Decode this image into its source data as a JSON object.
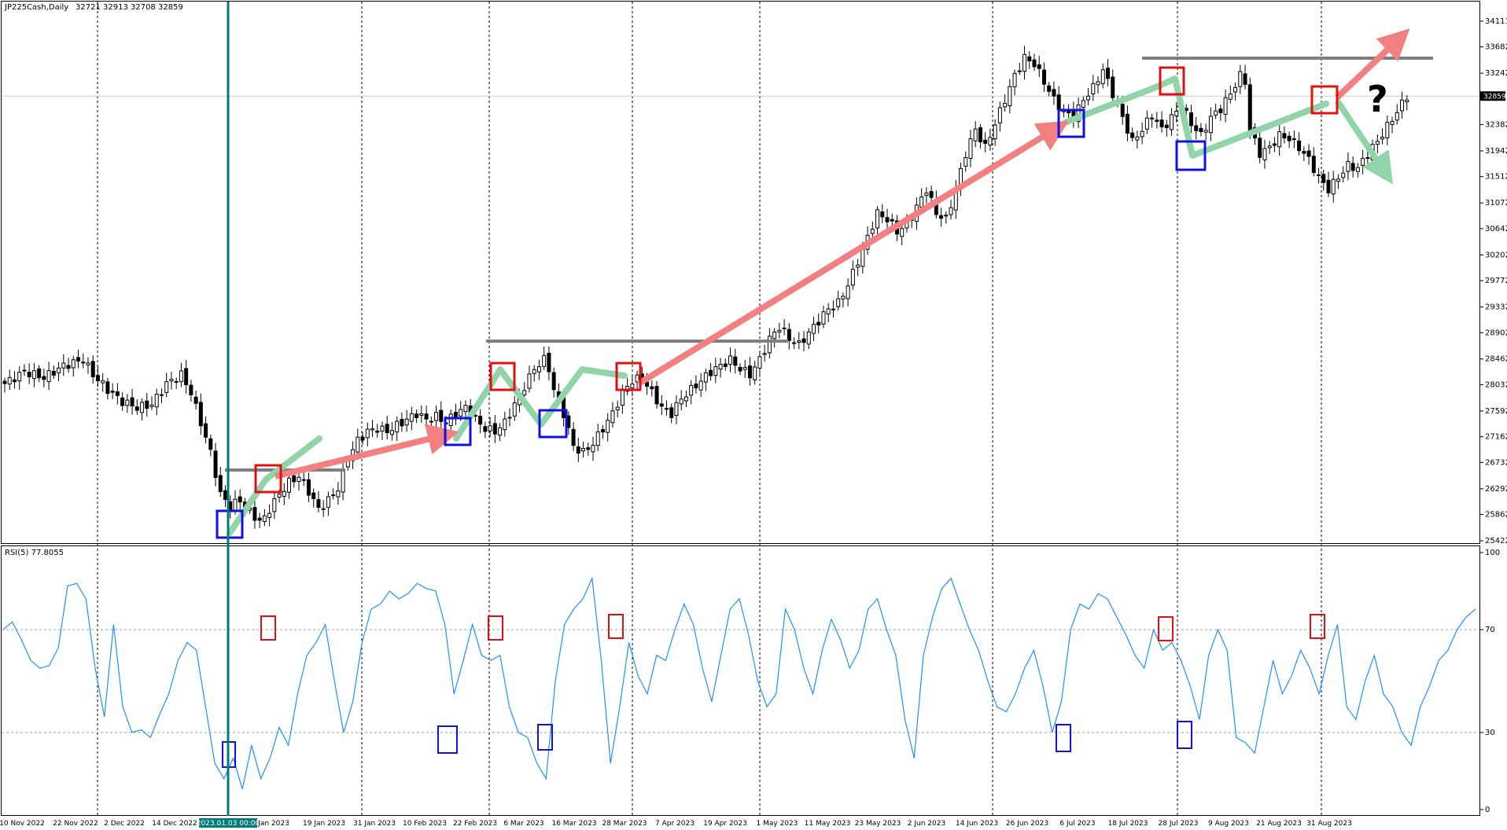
{
  "header": {
    "symbol": "JP225Cash,Daily",
    "ohlc": "32721 32913 32708 32859"
  },
  "rsi_header": {
    "label": "RSI(5) 77.8055"
  },
  "question_mark": "?",
  "vline_date_label": "2023.01.03 00:00",
  "current_price_label": "32859",
  "colors": {
    "bull_body": "#ffffff",
    "bear_body": "#000000",
    "rsi_line": "#1e90ff",
    "vertical_highlight": "#007b7b",
    "up_arrow": "#f28080",
    "green_path": "#90d4a8",
    "level_line": "#7f7f7f",
    "top_box": "#e01010",
    "bottom_box": "#1010e0"
  },
  "chart_data": [
    {
      "type": "candlestick",
      "title": "JP225Cash,Daily",
      "price_ticks": [
        25422,
        25862,
        26292,
        26732,
        27162,
        27592,
        28032,
        28462,
        28902,
        29332,
        29772,
        30202,
        30642,
        31072,
        31512,
        31942,
        32382,
        32859,
        33242,
        33682,
        34111
      ],
      "ylim": [
        25422,
        34111
      ],
      "date_ticks": [
        "10 Nov 2022",
        "22 Nov 2022",
        "2 Dec 2022",
        "14 Dec 2022",
        "2023.01.03 00:00",
        "Jan 2023",
        "19 Jan 2023",
        "31 Jan 2023",
        "10 Feb 2023",
        "22 Feb 2023",
        "6 Mar 2023",
        "16 Mar 2023",
        "28 Mar 2023",
        "7 Apr 2023",
        "19 Apr 2023",
        "1 May 2023",
        "11 May 2023",
        "23 May 2023",
        "2 Jun 2023",
        "14 Jun 2023",
        "26 Jun 2023",
        "6 Jul 2023",
        "18 Jul 2023",
        "28 Jul 2023",
        "9 Aug 2023",
        "21 Aug 2023",
        "31 Aug 2023"
      ],
      "close_path": [
        [
          0,
          28050
        ],
        [
          4,
          28250
        ],
        [
          8,
          28150
        ],
        [
          12,
          28350
        ],
        [
          16,
          28450
        ],
        [
          18,
          28200
        ],
        [
          21,
          27950
        ],
        [
          24,
          27750
        ],
        [
          27,
          27650
        ],
        [
          30,
          27700
        ],
        [
          33,
          28050
        ],
        [
          36,
          28200
        ],
        [
          38,
          27900
        ],
        [
          40,
          27400
        ],
        [
          42,
          26900
        ],
        [
          44,
          26200
        ],
        [
          46,
          26000
        ],
        [
          48,
          26100
        ],
        [
          50,
          25900
        ],
        [
          52,
          25750
        ],
        [
          53,
          25800
        ],
        [
          54,
          25950
        ],
        [
          56,
          26200
        ],
        [
          58,
          26400
        ],
        [
          60,
          26500
        ],
        [
          62,
          26250
        ],
        [
          64,
          25950
        ],
        [
          66,
          26100
        ],
        [
          68,
          26300
        ],
        [
          70,
          26800
        ],
        [
          72,
          27100
        ],
        [
          74,
          27250
        ],
        [
          76,
          27300
        ],
        [
          78,
          27250
        ],
        [
          80,
          27350
        ],
        [
          82,
          27450
        ],
        [
          84,
          27550
        ],
        [
          86,
          27450
        ],
        [
          88,
          27500
        ],
        [
          90,
          27400
        ],
        [
          92,
          27550
        ],
        [
          94,
          27650
        ],
        [
          96,
          27450
        ],
        [
          98,
          27300
        ],
        [
          100,
          27250
        ],
        [
          102,
          27400
        ],
        [
          104,
          27700
        ],
        [
          106,
          28000
        ],
        [
          108,
          28300
        ],
        [
          110,
          28450
        ],
        [
          111,
          28300
        ],
        [
          112,
          27950
        ],
        [
          114,
          27550
        ],
        [
          116,
          27000
        ],
        [
          118,
          26900
        ],
        [
          120,
          27050
        ],
        [
          122,
          27300
        ],
        [
          124,
          27550
        ],
        [
          126,
          27900
        ],
        [
          128,
          28100
        ],
        [
          130,
          28150
        ],
        [
          132,
          27900
        ],
        [
          134,
          27650
        ],
        [
          136,
          27550
        ],
        [
          138,
          27800
        ],
        [
          140,
          27950
        ],
        [
          142,
          28100
        ],
        [
          144,
          28250
        ],
        [
          146,
          28350
        ],
        [
          148,
          28450
        ],
        [
          150,
          28300
        ],
        [
          152,
          28200
        ],
        [
          154,
          28450
        ],
        [
          156,
          28800
        ],
        [
          158,
          29000
        ],
        [
          160,
          28800
        ],
        [
          162,
          28700
        ],
        [
          164,
          28900
        ],
        [
          166,
          29100
        ],
        [
          168,
          29300
        ],
        [
          170,
          29400
        ],
        [
          172,
          29700
        ],
        [
          174,
          30100
        ],
        [
          176,
          30500
        ],
        [
          178,
          30900
        ],
        [
          180,
          30800
        ],
        [
          182,
          30600
        ],
        [
          184,
          30700
        ],
        [
          186,
          31000
        ],
        [
          188,
          31300
        ],
        [
          190,
          30900
        ],
        [
          192,
          30800
        ],
        [
          194,
          31300
        ],
        [
          196,
          31900
        ],
        [
          198,
          32300
        ],
        [
          200,
          32000
        ],
        [
          202,
          32400
        ],
        [
          204,
          32800
        ],
        [
          206,
          33200
        ],
        [
          208,
          33500
        ],
        [
          210,
          33400
        ],
        [
          212,
          33100
        ],
        [
          214,
          32800
        ],
        [
          216,
          32600
        ],
        [
          218,
          32500
        ],
        [
          220,
          32800
        ],
        [
          222,
          33000
        ],
        [
          224,
          33300
        ],
        [
          226,
          32900
        ],
        [
          228,
          32500
        ],
        [
          230,
          32100
        ],
        [
          232,
          32300
        ],
        [
          234,
          32550
        ],
        [
          236,
          32300
        ],
        [
          238,
          32500
        ],
        [
          240,
          32700
        ],
        [
          242,
          32400
        ],
        [
          244,
          32200
        ],
        [
          246,
          32500
        ],
        [
          248,
          32650
        ],
        [
          250,
          32900
        ],
        [
          252,
          33200
        ],
        [
          253,
          33100
        ],
        [
          254,
          32300
        ],
        [
          256,
          31900
        ],
        [
          258,
          32000
        ],
        [
          260,
          32200
        ],
        [
          262,
          32150
        ],
        [
          264,
          32000
        ],
        [
          266,
          31800
        ],
        [
          268,
          31500
        ],
        [
          270,
          31300
        ],
        [
          272,
          31500
        ],
        [
          274,
          31700
        ],
        [
          276,
          31650
        ],
        [
          278,
          31900
        ],
        [
          280,
          32100
        ],
        [
          282,
          32350
        ],
        [
          284,
          32600
        ],
        [
          286,
          32859
        ]
      ]
    },
    {
      "type": "line",
      "title": "RSI(5) 77.8055",
      "ylim": [
        0,
        100
      ],
      "y_ticks": [
        0,
        30,
        70,
        100
      ],
      "series": [
        {
          "name": "RSI(5)",
          "values": [
            70,
            73,
            66,
            58,
            55,
            56,
            63,
            87,
            88,
            82,
            55,
            36,
            72,
            40,
            30,
            31,
            28,
            37,
            45,
            58,
            65,
            62,
            40,
            18,
            12,
            20,
            8,
            25,
            12,
            20,
            32,
            25,
            45,
            60,
            65,
            72,
            50,
            30,
            42,
            65,
            78,
            80,
            85,
            82,
            84,
            88,
            86,
            85,
            72,
            45,
            58,
            72,
            60,
            58,
            60,
            40,
            30,
            28,
            18,
            12,
            50,
            72,
            78,
            82,
            90,
            58,
            18,
            40,
            65,
            52,
            45,
            60,
            58,
            70,
            80,
            72,
            55,
            42,
            60,
            78,
            82,
            68,
            50,
            40,
            45,
            78,
            70,
            55,
            45,
            62,
            74,
            66,
            55,
            62,
            78,
            82,
            70,
            60,
            35,
            20,
            60,
            75,
            86,
            90,
            80,
            70,
            62,
            50,
            40,
            38,
            45,
            55,
            62,
            48,
            30,
            42,
            70,
            80,
            78,
            84,
            82,
            75,
            68,
            60,
            55,
            70,
            62,
            65,
            58,
            48,
            35,
            60,
            70,
            62,
            28,
            26,
            22,
            40,
            58,
            45,
            52,
            62,
            55,
            45,
            60,
            72,
            40,
            35,
            50,
            60,
            45,
            40,
            30,
            25,
            40,
            48,
            58,
            62,
            70,
            75,
            78
          ]
        }
      ]
    }
  ]
}
